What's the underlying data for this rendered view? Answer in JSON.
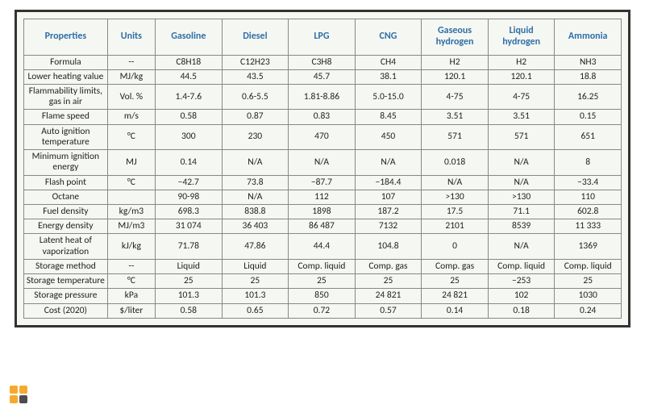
{
  "table": {
    "columns": [
      "Properties",
      "Units",
      "Gasoline",
      "Diesel",
      "LPG",
      "CNG",
      "Gaseous hydrogen",
      "Liquid hydrogen",
      "Ammonia"
    ],
    "rows": [
      {
        "prop": "Formula",
        "unit": "--",
        "vals": [
          "C8H18",
          "C12H23",
          "C3H8",
          "CH4",
          "H2",
          "H2",
          "NH3"
        ]
      },
      {
        "prop": "Lower heating value",
        "unit": "MJ/kg",
        "vals": [
          "44.5",
          "43.5",
          "45.7",
          "38.1",
          "120.1",
          "120.1",
          "18.8"
        ]
      },
      {
        "prop": "Flammability limits, gas in air",
        "unit": "Vol. %",
        "vals": [
          "1.4-7.6",
          "0.6-5.5",
          "1.81-8.86",
          "5.0-15.0",
          "4-75",
          "4-75",
          "16.25"
        ]
      },
      {
        "prop": "Flame speed",
        "unit": "m/s",
        "vals": [
          "0.58",
          "0.87",
          "0.83",
          "8.45",
          "3.51",
          "3.51",
          "0.15"
        ]
      },
      {
        "prop": "Auto ignition temperature",
        "unit": "°C",
        "vals": [
          "300",
          "230",
          "470",
          "450",
          "571",
          "571",
          "651"
        ]
      },
      {
        "prop": "Minimum ignition energy",
        "unit": "MJ",
        "vals": [
          "0.14",
          "N/A",
          "N/A",
          "N/A",
          "0.018",
          "N/A",
          "8"
        ]
      },
      {
        "prop": "Flash point",
        "unit": "°C",
        "vals": [
          "−42.7",
          "73.8",
          "−87.7",
          "−184.4",
          "N/A",
          "N/A",
          "−33.4"
        ]
      },
      {
        "prop": "Octane",
        "unit": "",
        "vals": [
          "90-98",
          "N/A",
          "112",
          "107",
          ">130",
          ">130",
          "110"
        ]
      },
      {
        "prop": "Fuel density",
        "unit": "kg/m3",
        "vals": [
          "698.3",
          "838.8",
          "1898",
          "187.2",
          "17.5",
          "71.1",
          "602.8"
        ]
      },
      {
        "prop": "Energy density",
        "unit": "MJ/m3",
        "vals": [
          "31 074",
          "36 403",
          "86 487",
          "7132",
          "2101",
          "8539",
          "11 333"
        ]
      },
      {
        "prop": "Latent heat of vaporization",
        "unit": "kJ/kg",
        "vals": [
          "71.78",
          "47.86",
          "44.4",
          "104.8",
          "0",
          "N/A",
          "1369"
        ]
      },
      {
        "prop": "Storage method",
        "unit": "--",
        "vals": [
          "Liquid",
          "Liquid",
          "Comp. liquid",
          "Comp. gas",
          "Comp. gas",
          "Comp. liquid",
          "Comp. liquid"
        ]
      },
      {
        "prop": "Storage temperature",
        "unit": "°C",
        "vals": [
          "25",
          "25",
          "25",
          "25",
          "25",
          "−253",
          "25"
        ]
      },
      {
        "prop": "Storage pressure",
        "unit": "kPa",
        "vals": [
          "101.3",
          "101.3",
          "850",
          "24 821",
          "24 821",
          "102",
          "1030"
        ]
      },
      {
        "prop": "Cost (2020)",
        "unit": "$/liter",
        "vals": [
          "0.58",
          "0.65",
          "0.72",
          "0.57",
          "0.14",
          "0.18",
          "0.24"
        ]
      }
    ],
    "header_color": "#2f6fa8",
    "border_color": "#888",
    "background": "#f5f7f2",
    "font_family": "Calibri",
    "header_fontsize": 12,
    "cell_fontsize": 11.5
  },
  "logo_colors": {
    "orange": "#f5a623",
    "dark": "#3a3a3a"
  }
}
